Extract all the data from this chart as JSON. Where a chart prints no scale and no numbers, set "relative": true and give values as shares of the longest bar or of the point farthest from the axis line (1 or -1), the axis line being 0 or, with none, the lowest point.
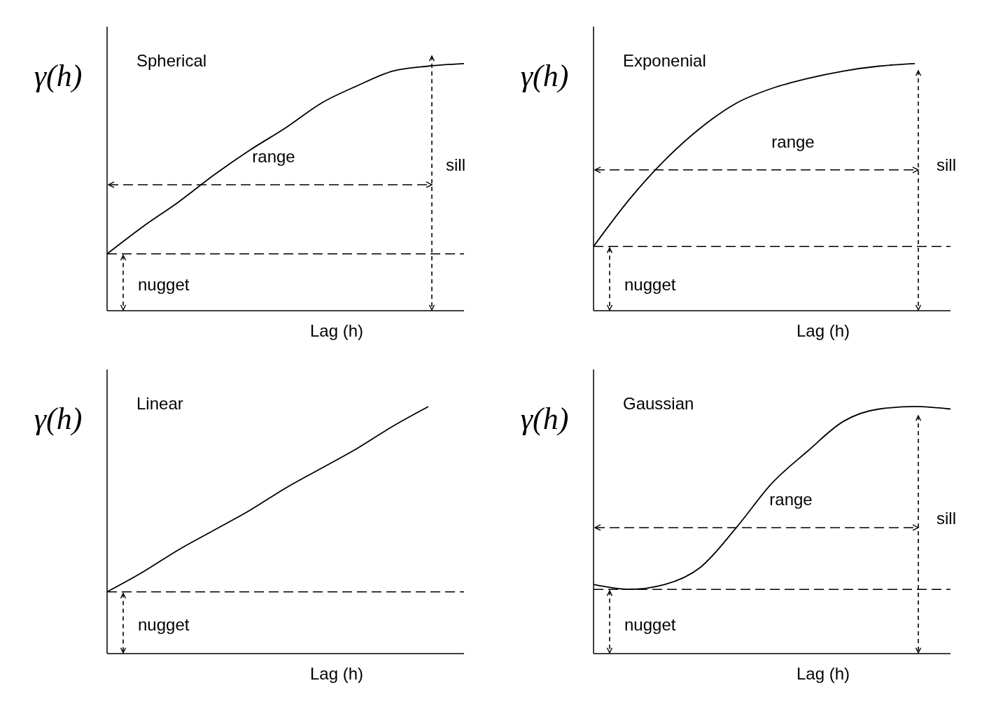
{
  "chart_data": [
    {
      "type": "line",
      "title": "Spherical",
      "xlabel": "Lag (h)",
      "ylabel": "γ(h)",
      "relative": true,
      "categories": [
        null,
        null,
        null,
        null,
        null,
        null,
        null,
        null,
        null,
        null,
        null
      ],
      "series": [
        {
          "color": "#000000",
          "values": [
            0.23,
            0.34,
            0.44,
            0.55,
            0.65,
            0.74,
            0.84,
            0.91,
            0.97,
            0.99,
            1
          ]
        }
      ],
      "ref_lines": [
        {
          "axis": "y",
          "value": 0.23,
          "label": null,
          "line_style": "dashed",
          "color": "#000000"
        },
        {
          "axis": "y",
          "value": 0.51,
          "label": "range",
          "line_style": "dashed",
          "color": "#000000"
        }
      ],
      "annotations": [
        "sill",
        "nugget"
      ],
      "marker": "none"
    },
    {
      "type": "line",
      "title": "Exponenial",
      "xlabel": "Lag (h)",
      "ylabel": "γ(h)",
      "relative": true,
      "categories": [
        null,
        null,
        null,
        null,
        null,
        null,
        null,
        null,
        null,
        null,
        null
      ],
      "series": [
        {
          "color": "#000000",
          "values": [
            0.26,
            0.45,
            0.61,
            0.74,
            0.84,
            0.9,
            0.94,
            0.97,
            0.99,
            1,
            null
          ]
        }
      ],
      "ref_lines": [
        {
          "axis": "y",
          "value": 0.26,
          "label": null,
          "line_style": "dashed",
          "color": "#000000"
        },
        {
          "axis": "y",
          "value": 0.57,
          "label": "range",
          "line_style": "dashed",
          "color": "#000000"
        }
      ],
      "annotations": [
        "sill",
        "nugget"
      ],
      "marker": "none"
    },
    {
      "type": "line",
      "title": "Linear",
      "xlabel": "Lag (h)",
      "ylabel": "γ(h)",
      "relative": true,
      "categories": [
        null,
        null,
        null,
        null,
        null,
        null,
        null,
        null,
        null,
        null,
        null
      ],
      "series": [
        {
          "color": "#000000",
          "values": [
            0.25,
            0.33,
            0.42,
            0.5,
            0.58,
            0.67,
            0.75,
            0.83,
            0.92,
            1,
            null
          ]
        }
      ],
      "ref_lines": [
        {
          "axis": "y",
          "value": 0.25,
          "label": null,
          "line_style": "dashed",
          "color": "#000000"
        }
      ],
      "annotations": [
        "nugget"
      ],
      "marker": "none"
    },
    {
      "type": "line",
      "title": "Gaussian",
      "xlabel": "Lag (h)",
      "ylabel": "γ(h)",
      "relative": true,
      "categories": [
        null,
        null,
        null,
        null,
        null,
        null,
        null,
        null,
        null,
        null,
        null
      ],
      "series": [
        {
          "color": "#000000",
          "values": [
            0.28,
            0.26,
            0.28,
            0.35,
            0.51,
            0.69,
            0.82,
            0.94,
            0.99,
            1,
            0.99
          ]
        }
      ],
      "ref_lines": [
        {
          "axis": "y",
          "value": 0.26,
          "label": null,
          "line_style": "dashed",
          "color": "#000000"
        },
        {
          "axis": "y",
          "value": 0.51,
          "label": "range",
          "line_style": "dashed",
          "color": "#000000"
        }
      ],
      "annotations": [
        "sill",
        "nugget"
      ],
      "marker": "none"
    }
  ]
}
